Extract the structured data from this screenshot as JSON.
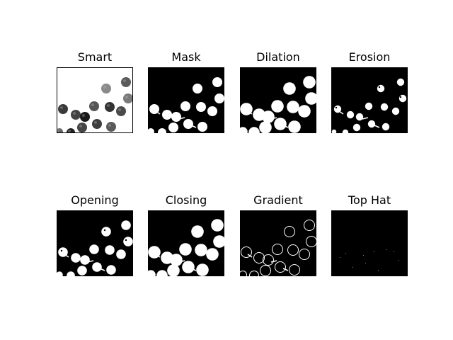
{
  "figure": {
    "panels": [
      {
        "title": "Smart",
        "mode": "smart"
      },
      {
        "title": "Mask",
        "mode": "mask"
      },
      {
        "title": "Dilation",
        "mode": "dilation"
      },
      {
        "title": "Erosion",
        "mode": "erosion"
      },
      {
        "title": "Opening",
        "mode": "opening"
      },
      {
        "title": "Closing",
        "mode": "closing"
      },
      {
        "title": "Gradient",
        "mode": "gradient"
      },
      {
        "title": "Top Hat",
        "mode": "tophat"
      }
    ],
    "colors": {
      "mask_bg": "#000000",
      "foreground": "#ffffff",
      "smart_bg": "#ffffff",
      "frame": "#000000"
    }
  }
}
